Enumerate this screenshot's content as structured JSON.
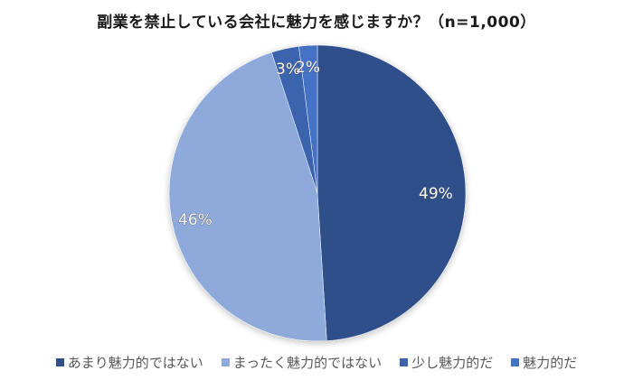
{
  "chart_data": {
    "type": "pie",
    "title": "副業を禁止している会社に魅力を感じますか？（n=1,000）",
    "categories": [
      "あまり魅力的ではない",
      "まったく魅力的ではない",
      "少し魅力的だ",
      "魅力的だ"
    ],
    "values": [
      49,
      46,
      3,
      2
    ],
    "unit": "%",
    "data_labels": [
      "49%",
      "46%",
      "3%",
      "2%"
    ],
    "colors": [
      "#2F4F8A",
      "#8EAADB",
      "#3A64AE",
      "#4472C4"
    ],
    "start_angle": "12 o'clock, clockwise",
    "legend_position": "bottom"
  },
  "title": "副業を禁止している会社に魅力を感じますか？（n=1,000）",
  "legend": [
    {
      "label": "あまり魅力的ではない",
      "color": "#2F4F8A"
    },
    {
      "label": "まったく魅力的ではない",
      "color": "#8EAADB"
    },
    {
      "label": "少し魅力的だ",
      "color": "#3A64AE"
    },
    {
      "label": "魅力的だ",
      "color": "#4472C4"
    }
  ],
  "labels": {
    "a": "49%",
    "b": "46%",
    "c": "3%",
    "d": "2%"
  }
}
